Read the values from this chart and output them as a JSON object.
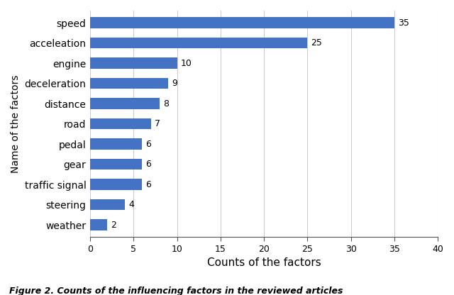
{
  "categories": [
    "speed",
    "acceleation",
    "engine",
    "deceleration",
    "distance",
    "road",
    "pedal",
    "gear",
    "traffic signal",
    "steering",
    "weather"
  ],
  "values": [
    35,
    25,
    10,
    9,
    8,
    7,
    6,
    6,
    6,
    4,
    2
  ],
  "bar_color": "#4472C4",
  "xlabel": "Counts of the factors",
  "ylabel": "Name of the factors",
  "xlim": [
    0,
    40
  ],
  "xticks": [
    0,
    5,
    10,
    15,
    20,
    25,
    30,
    35,
    40
  ],
  "caption": "Figure 2. Counts of the influencing factors in the reviewed articles",
  "bar_height": 0.55,
  "value_fontsize": 9,
  "xlabel_fontsize": 11,
  "ylabel_fontsize": 10,
  "tick_fontsize": 9,
  "ytick_fontsize": 10,
  "caption_fontsize": 9
}
